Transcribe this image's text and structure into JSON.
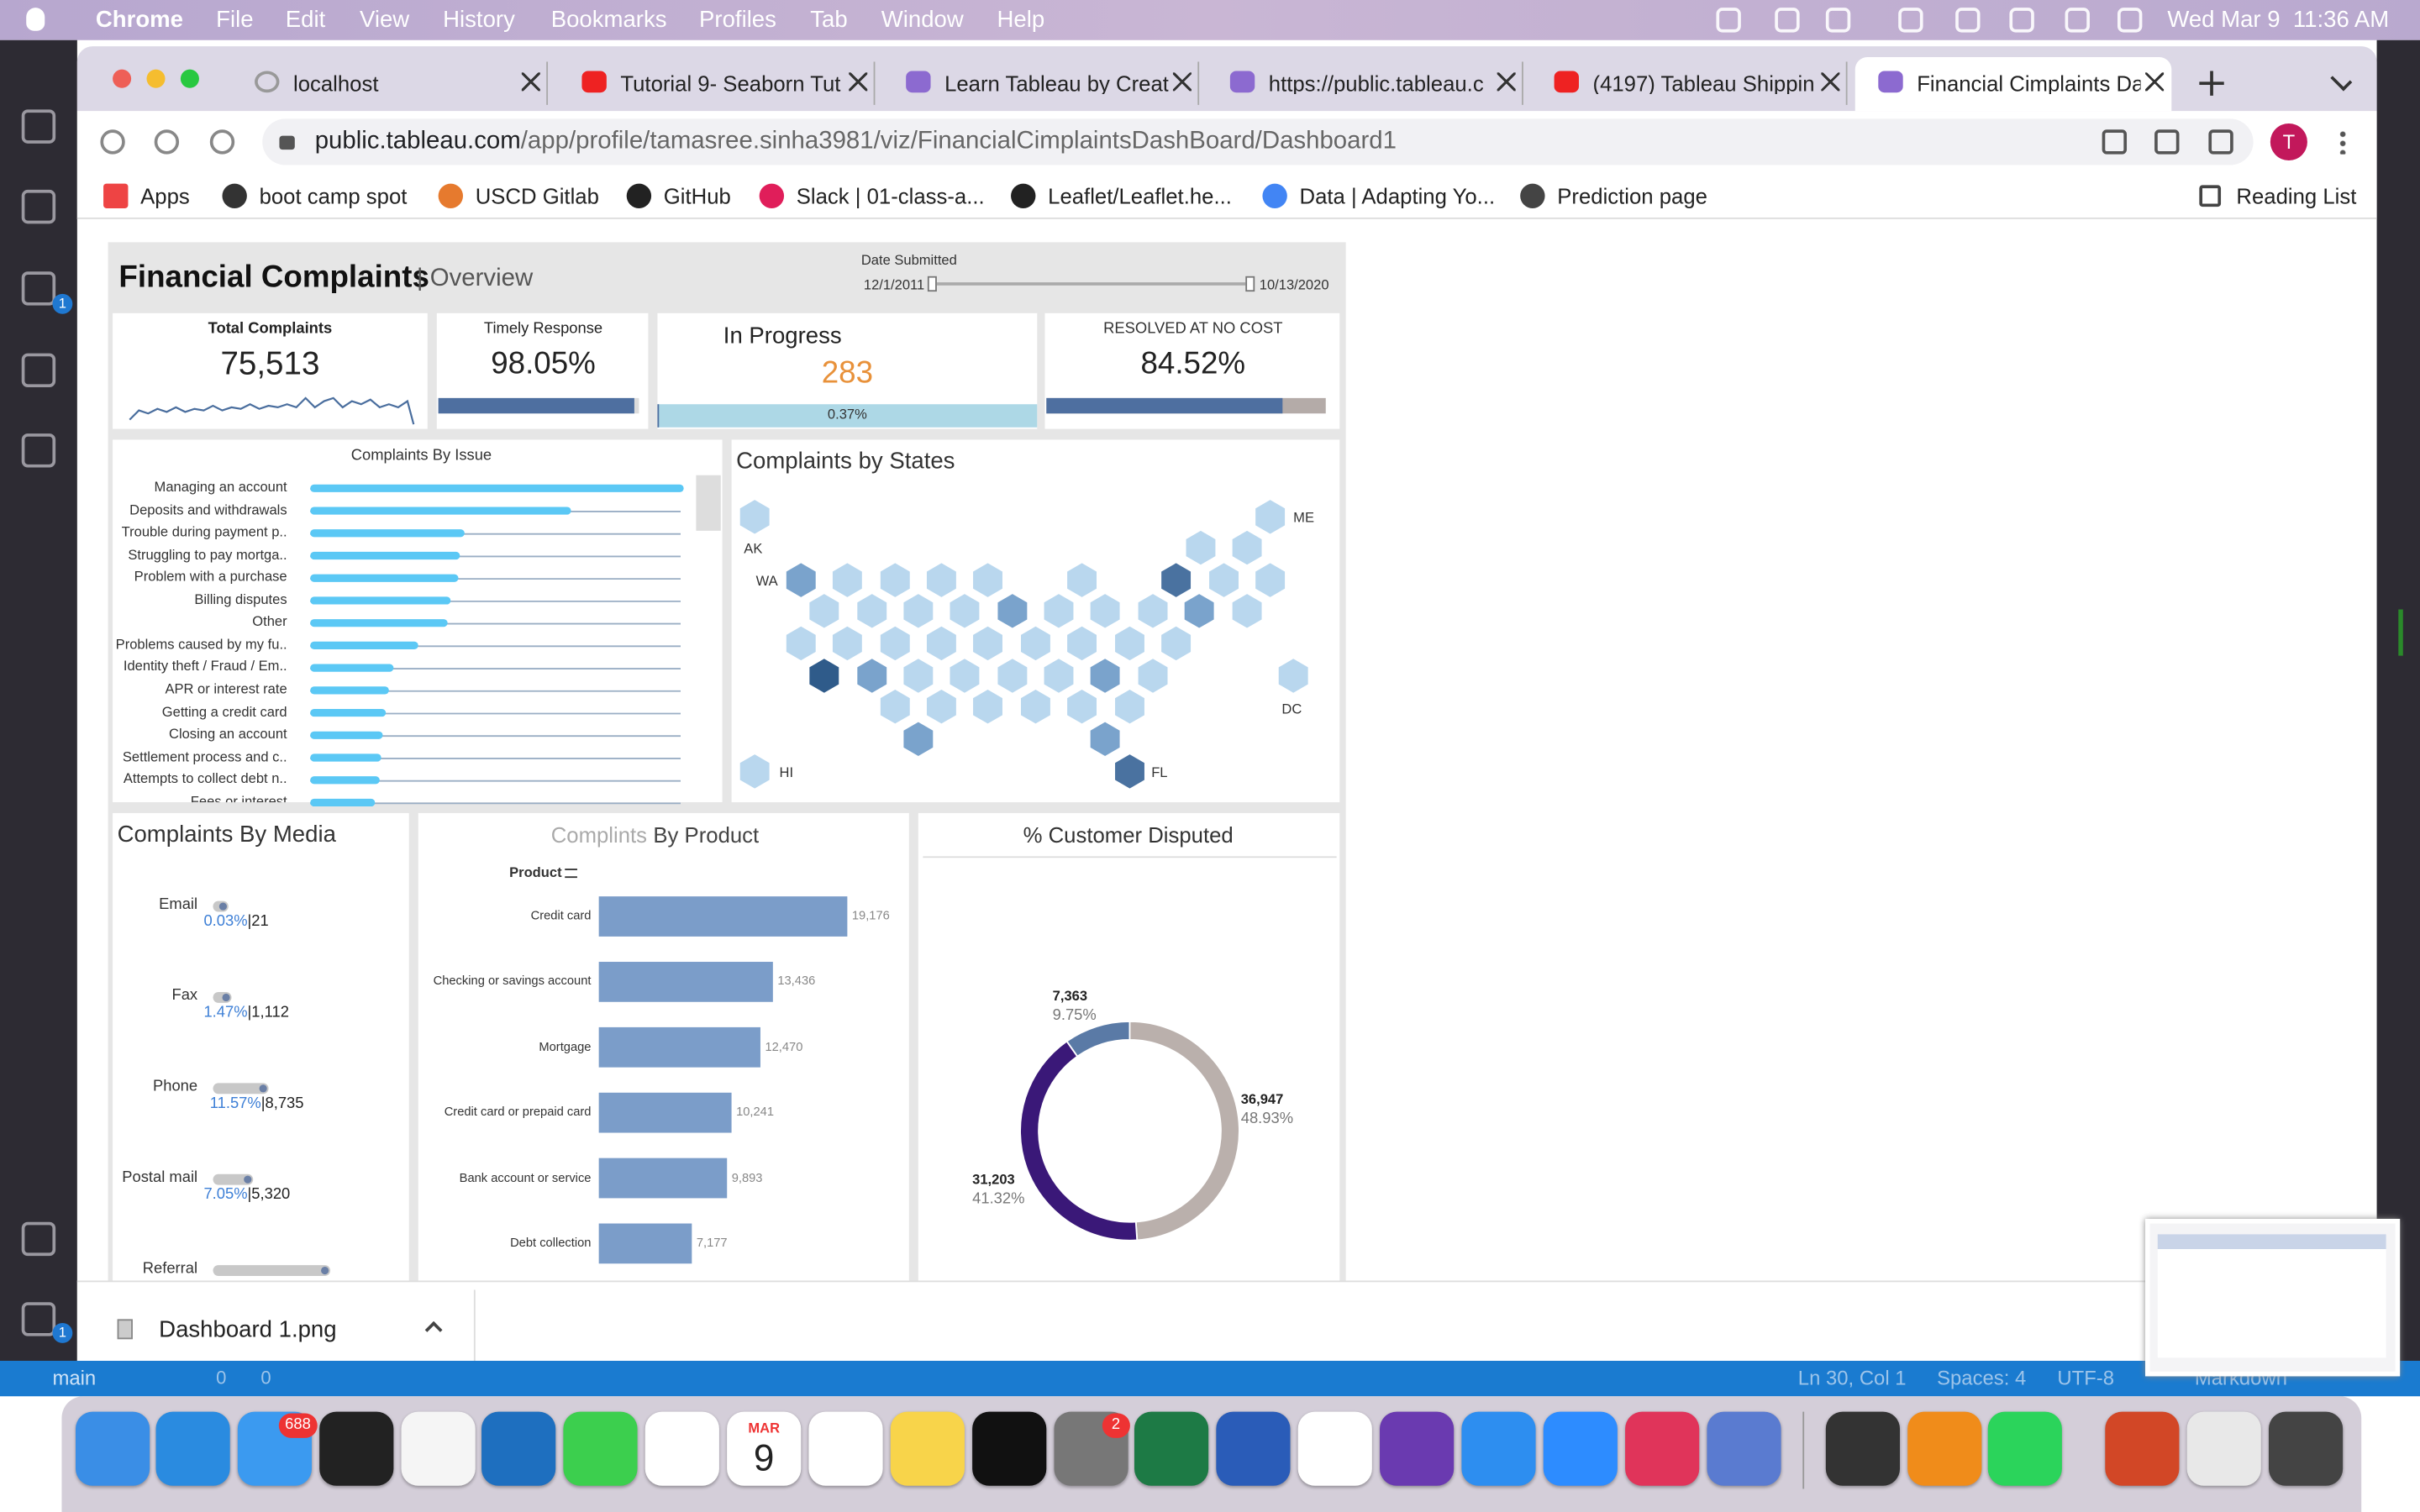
{
  "menu_bar": {
    "app": "Chrome",
    "items": [
      "File",
      "Edit",
      "View",
      "History",
      "Bookmarks",
      "Profiles",
      "Tab",
      "Window",
      "Help"
    ],
    "clock": "Wed Mar 9  11:36 AM"
  },
  "tabs": [
    "localhost",
    "Tutorial 9- Seaborn Tut",
    "Learn Tableau by Creat",
    "https://public.tableau.c",
    "(4197) Tableau Shippin",
    "Financial Cimplaints Da"
  ],
  "address": {
    "host": "public.tableau.com",
    "path": "/app/profile/tamasree.sinha3981/viz/FinancialCimplaintsDashBoard/Dashboard1"
  },
  "profile_initial": "T",
  "bookmarks": [
    "Apps",
    "boot camp spot",
    "USCD Gitlab",
    "GitHub",
    "Slack | 01-class-a...",
    "Leaflet/Leaflet.he...",
    "Data | Adapting Yo...",
    "Prediction page"
  ],
  "reading_list": "Reading List",
  "dashboard": {
    "title": "Financial Complaints",
    "subtitle": "| Overview",
    "date_filter": {
      "label": "Date Submitted",
      "start": "12/1/2011",
      "end": "10/13/2020"
    },
    "kpis": {
      "total": {
        "label": "Total Complaints",
        "value": "75,513"
      },
      "timely": {
        "label": "Timely Response",
        "value": 98.05,
        "value_label": "98.05%"
      },
      "in_progress": {
        "label": "In Progress",
        "value": "283",
        "share": 0.37,
        "share_label": "0.37%"
      },
      "resolved": {
        "label": "RESOLVED AT NO COST",
        "value": 84.52,
        "value_label": "84.52%"
      }
    },
    "issues": {
      "title": "Complaints By Issue",
      "categories": [
        "Managing an account",
        "Deposits and withdrawals",
        "Trouble during payment p..",
        "Struggling to pay mortga..",
        "Problem with a purchase",
        "Billing disputes",
        "Other",
        "Problems caused by my fu..",
        "Identity theft / Fraud / Em..",
        "APR or interest rate",
        "Getting a credit card",
        "Closing an account",
        "Settlement process and c..",
        "Attempts to collect debt n..",
        "Fees or interest"
      ],
      "values": [
        242,
        169,
        100,
        97,
        96,
        91,
        89,
        70,
        54,
        51,
        49,
        47,
        46,
        45,
        42
      ]
    },
    "states": {
      "title": "Complaints by States",
      "labels": [
        "AK",
        "WA",
        "ME",
        "DC",
        "HI",
        "FL"
      ]
    },
    "media": {
      "title": "Complaints By Media",
      "rows": [
        {
          "name": "Email",
          "percent": "0.03%",
          "count": "|21"
        },
        {
          "name": "Fax",
          "percent": "1.47%",
          "count": "|1,112"
        },
        {
          "name": "Phone",
          "percent": "11.57%",
          "count": "|8,735"
        },
        {
          "name": "Postal mail",
          "percent": "7.05%",
          "count": "|5,320"
        },
        {
          "name": "Referral"
        }
      ]
    },
    "product": {
      "title_light": "Complints",
      "title": "By Product",
      "field": "Product",
      "categories": [
        "Credit card",
        "Checking or savings account",
        "Mortgage",
        "Credit card or prepaid card",
        "Bank account or service",
        "Debt collection"
      ],
      "values": [
        19176,
        13436,
        12470,
        10241,
        9893,
        7177
      ],
      "value_labels": [
        "19,176",
        "13,436",
        "12,470",
        "10,241",
        "9,893",
        "7,177"
      ],
      "color": "#7b9dc9"
    },
    "disputed": {
      "title": "% Customer Disputed",
      "values": [
        9.75,
        48.93,
        41.32
      ],
      "value_labels": [
        "9.75%",
        "48.93%",
        "41.32%"
      ],
      "counts": [
        "7,363",
        "36,947",
        "31,203"
      ],
      "colors": [
        "#5a7aa6",
        "#bab0ac",
        "#3a1878"
      ]
    }
  },
  "downloads": {
    "file": "Dashboard 1.png"
  },
  "status_bar": {
    "branch": "main",
    "problems": "0",
    "warnings": "0",
    "cursor": "Ln 30, Col 1",
    "spaces": "Spaces: 4",
    "encoding": "UTF-8",
    "language": "Markdown"
  },
  "vscode_badges": [
    "1",
    "1"
  ],
  "dock": {
    "mail_badge": "688",
    "calendar_month": "MAR",
    "calendar_day": "9",
    "settings_badge": "2"
  }
}
